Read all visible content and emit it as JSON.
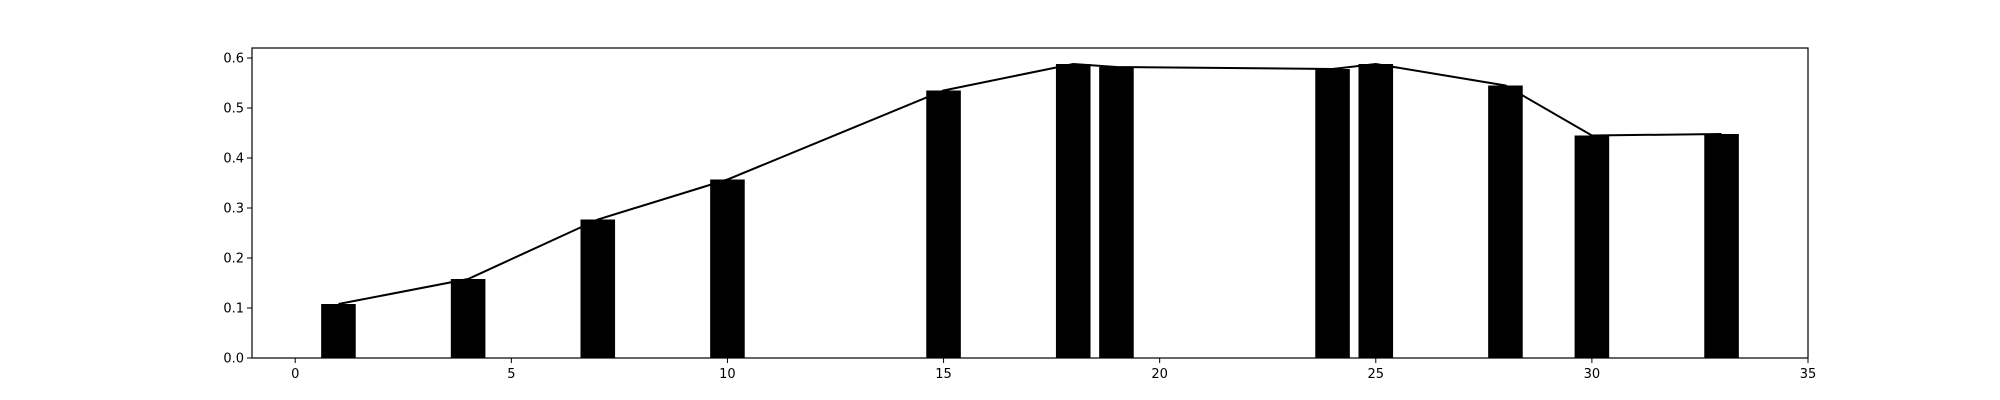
{
  "chart_data": {
    "type": "bar",
    "xlim": [
      -1,
      35
    ],
    "ylim": [
      0,
      0.62
    ],
    "xticks": [
      0,
      5,
      10,
      15,
      20,
      25,
      30,
      35
    ],
    "yticks": [
      0.0,
      0.1,
      0.2,
      0.3,
      0.4,
      0.5,
      0.6
    ],
    "xtick_labels": [
      "0",
      "5",
      "10",
      "15",
      "20",
      "25",
      "30",
      "35"
    ],
    "ytick_labels": [
      "0.0",
      "0.1",
      "0.2",
      "0.3",
      "0.4",
      "0.5",
      "0.6"
    ],
    "bar_width": 0.8,
    "x": [
      1,
      4,
      7,
      10,
      15,
      18,
      19,
      24,
      25,
      28,
      30,
      33
    ],
    "values": [
      0.108,
      0.158,
      0.277,
      0.357,
      0.535,
      0.588,
      0.582,
      0.578,
      0.588,
      0.545,
      0.445,
      0.448
    ],
    "grid": false,
    "bar_color": "#000000",
    "line_color": "#000000",
    "title": "",
    "xlabel": "",
    "ylabel": ""
  }
}
